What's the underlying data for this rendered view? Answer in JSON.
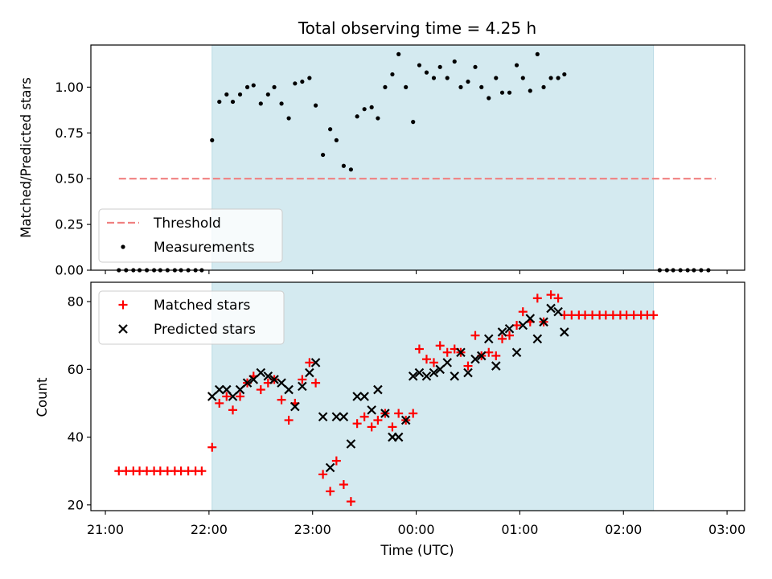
{
  "chart_data": {
    "title": "Total observing time = 4.25 h",
    "xlabel": "Time (UTC)",
    "x_ticks": [
      "21:00",
      "22:00",
      "23:00",
      "00:00",
      "01:00",
      "02:00",
      "03:00"
    ],
    "x_tick_hours": [
      0,
      1,
      2,
      3,
      4,
      5,
      6
    ],
    "x_range_hours": [
      -0.14,
      6.17
    ],
    "shaded_interval_hours": [
      1.03,
      5.29
    ],
    "shade_color": "#d4eaf0",
    "panels": [
      {
        "type": "scatter",
        "ylabel": "Matched/Predicted stars",
        "ylim": [
          0,
          1.23
        ],
        "y_ticks": [
          0.0,
          0.25,
          0.5,
          0.75,
          1.0
        ],
        "y_tick_labels": [
          "0.00",
          "0.25",
          "0.50",
          "0.75",
          "1.00"
        ],
        "legend_position": "lower-left",
        "threshold": {
          "name": "Threshold",
          "value": 0.5,
          "x_range": [
            0.13,
            5.89
          ],
          "color": "#f08080"
        },
        "series": [
          {
            "name": "Measurements",
            "marker": "dot",
            "color": "#000000",
            "points": [
              [
                0.13,
                0
              ],
              [
                0.2,
                0
              ],
              [
                0.27,
                0
              ],
              [
                0.33,
                0
              ],
              [
                0.4,
                0
              ],
              [
                0.47,
                0
              ],
              [
                0.53,
                0
              ],
              [
                0.6,
                0
              ],
              [
                0.67,
                0
              ],
              [
                0.73,
                0
              ],
              [
                0.8,
                0
              ],
              [
                0.87,
                0
              ],
              [
                0.93,
                0
              ],
              [
                1.03,
                0.71
              ],
              [
                1.1,
                0.92
              ],
              [
                1.17,
                0.96
              ],
              [
                1.23,
                0.92
              ],
              [
                1.3,
                0.96
              ],
              [
                1.37,
                1.0
              ],
              [
                1.43,
                1.01
              ],
              [
                1.5,
                0.91
              ],
              [
                1.57,
                0.96
              ],
              [
                1.63,
                1.0
              ],
              [
                1.7,
                0.91
              ],
              [
                1.77,
                0.83
              ],
              [
                1.83,
                1.02
              ],
              [
                1.9,
                1.03
              ],
              [
                1.97,
                1.05
              ],
              [
                2.03,
                0.9
              ],
              [
                2.1,
                0.63
              ],
              [
                2.17,
                0.77
              ],
              [
                2.23,
                0.71
              ],
              [
                2.3,
                0.57
              ],
              [
                2.37,
                0.55
              ],
              [
                2.43,
                0.84
              ],
              [
                2.5,
                0.88
              ],
              [
                2.57,
                0.89
              ],
              [
                2.63,
                0.83
              ],
              [
                2.7,
                1.0
              ],
              [
                2.77,
                1.07
              ],
              [
                2.83,
                1.18
              ],
              [
                2.9,
                1.0
              ],
              [
                2.97,
                0.81
              ],
              [
                3.03,
                1.12
              ],
              [
                3.1,
                1.08
              ],
              [
                3.17,
                1.05
              ],
              [
                3.23,
                1.11
              ],
              [
                3.3,
                1.05
              ],
              [
                3.37,
                1.14
              ],
              [
                3.43,
                1.0
              ],
              [
                3.5,
                1.03
              ],
              [
                3.57,
                1.11
              ],
              [
                3.63,
                1.0
              ],
              [
                3.7,
                0.94
              ],
              [
                3.77,
                1.05
              ],
              [
                3.83,
                0.97
              ],
              [
                3.9,
                0.97
              ],
              [
                3.97,
                1.12
              ],
              [
                4.03,
                1.05
              ],
              [
                4.1,
                0.98
              ],
              [
                4.17,
                1.18
              ],
              [
                4.23,
                1.0
              ],
              [
                4.3,
                1.05
              ],
              [
                4.37,
                1.05
              ],
              [
                4.43,
                1.07
              ],
              [
                5.35,
                0
              ],
              [
                5.42,
                0
              ],
              [
                5.48,
                0
              ],
              [
                5.55,
                0
              ],
              [
                5.62,
                0
              ],
              [
                5.68,
                0
              ],
              [
                5.75,
                0
              ],
              [
                5.82,
                0
              ]
            ]
          }
        ]
      },
      {
        "type": "scatter",
        "ylabel": "Count",
        "ylim": [
          18.3,
          85.7
        ],
        "y_ticks": [
          20,
          40,
          60,
          80
        ],
        "y_tick_labels": [
          "20",
          "40",
          "60",
          "80"
        ],
        "legend_position": "upper-left",
        "series": [
          {
            "name": "Matched stars",
            "marker": "plus",
            "color": "#ff0000",
            "points": [
              [
                0.13,
                30
              ],
              [
                0.2,
                30
              ],
              [
                0.27,
                30
              ],
              [
                0.33,
                30
              ],
              [
                0.4,
                30
              ],
              [
                0.47,
                30
              ],
              [
                0.53,
                30
              ],
              [
                0.6,
                30
              ],
              [
                0.67,
                30
              ],
              [
                0.73,
                30
              ],
              [
                0.8,
                30
              ],
              [
                0.87,
                30
              ],
              [
                0.93,
                30
              ],
              [
                1.03,
                37
              ],
              [
                1.1,
                50
              ],
              [
                1.17,
                52
              ],
              [
                1.23,
                48
              ],
              [
                1.3,
                52
              ],
              [
                1.37,
                56
              ],
              [
                1.43,
                58
              ],
              [
                1.5,
                54
              ],
              [
                1.57,
                56
              ],
              [
                1.63,
                57
              ],
              [
                1.7,
                51
              ],
              [
                1.77,
                45
              ],
              [
                1.83,
                50
              ],
              [
                1.9,
                57
              ],
              [
                1.97,
                62
              ],
              [
                2.03,
                56
              ],
              [
                2.1,
                29
              ],
              [
                2.17,
                24
              ],
              [
                2.23,
                33
              ],
              [
                2.3,
                26
              ],
              [
                2.37,
                21
              ],
              [
                2.43,
                44
              ],
              [
                2.5,
                46
              ],
              [
                2.57,
                43
              ],
              [
                2.63,
                45
              ],
              [
                2.7,
                47
              ],
              [
                2.77,
                43
              ],
              [
                2.83,
                47
              ],
              [
                2.9,
                45
              ],
              [
                2.97,
                47
              ],
              [
                3.03,
                66
              ],
              [
                3.1,
                63
              ],
              [
                3.17,
                62
              ],
              [
                3.23,
                67
              ],
              [
                3.3,
                65
              ],
              [
                3.37,
                66
              ],
              [
                3.43,
                65
              ],
              [
                3.5,
                61
              ],
              [
                3.57,
                70
              ],
              [
                3.63,
                64
              ],
              [
                3.7,
                65
              ],
              [
                3.77,
                64
              ],
              [
                3.83,
                69
              ],
              [
                3.9,
                70
              ],
              [
                3.97,
                73
              ],
              [
                4.03,
                77
              ],
              [
                4.1,
                74
              ],
              [
                4.17,
                81
              ],
              [
                4.23,
                74
              ],
              [
                4.3,
                82
              ],
              [
                4.37,
                81
              ],
              [
                4.43,
                76
              ],
              [
                4.5,
                76
              ],
              [
                4.57,
                76
              ],
              [
                4.63,
                76
              ],
              [
                4.7,
                76
              ],
              [
                4.77,
                76
              ],
              [
                4.83,
                76
              ],
              [
                4.9,
                76
              ],
              [
                4.97,
                76
              ],
              [
                5.03,
                76
              ],
              [
                5.1,
                76
              ],
              [
                5.17,
                76
              ],
              [
                5.23,
                76
              ],
              [
                5.29,
                76
              ]
            ]
          },
          {
            "name": "Predicted stars",
            "marker": "x",
            "color": "#000000",
            "points": [
              [
                1.03,
                52
              ],
              [
                1.1,
                54
              ],
              [
                1.17,
                54
              ],
              [
                1.23,
                52
              ],
              [
                1.3,
                54
              ],
              [
                1.37,
                56
              ],
              [
                1.43,
                57
              ],
              [
                1.5,
                59
              ],
              [
                1.57,
                58
              ],
              [
                1.63,
                57
              ],
              [
                1.7,
                56
              ],
              [
                1.77,
                54
              ],
              [
                1.83,
                49
              ],
              [
                1.9,
                55
              ],
              [
                1.97,
                59
              ],
              [
                2.03,
                62
              ],
              [
                2.1,
                46
              ],
              [
                2.17,
                31
              ],
              [
                2.23,
                46
              ],
              [
                2.3,
                46
              ],
              [
                2.37,
                38
              ],
              [
                2.43,
                52
              ],
              [
                2.5,
                52
              ],
              [
                2.57,
                48
              ],
              [
                2.63,
                54
              ],
              [
                2.7,
                47
              ],
              [
                2.77,
                40
              ],
              [
                2.83,
                40
              ],
              [
                2.9,
                45
              ],
              [
                2.97,
                58
              ],
              [
                3.03,
                59
              ],
              [
                3.1,
                58
              ],
              [
                3.17,
                59
              ],
              [
                3.23,
                60
              ],
              [
                3.3,
                62
              ],
              [
                3.37,
                58
              ],
              [
                3.43,
                65
              ],
              [
                3.5,
                59
              ],
              [
                3.57,
                63
              ],
              [
                3.63,
                64
              ],
              [
                3.7,
                69
              ],
              [
                3.77,
                61
              ],
              [
                3.83,
                71
              ],
              [
                3.9,
                72
              ],
              [
                3.97,
                65
              ],
              [
                4.03,
                73
              ],
              [
                4.1,
                75
              ],
              [
                4.17,
                69
              ],
              [
                4.23,
                74
              ],
              [
                4.3,
                78
              ],
              [
                4.37,
                77
              ],
              [
                4.43,
                71
              ]
            ]
          }
        ]
      }
    ]
  }
}
